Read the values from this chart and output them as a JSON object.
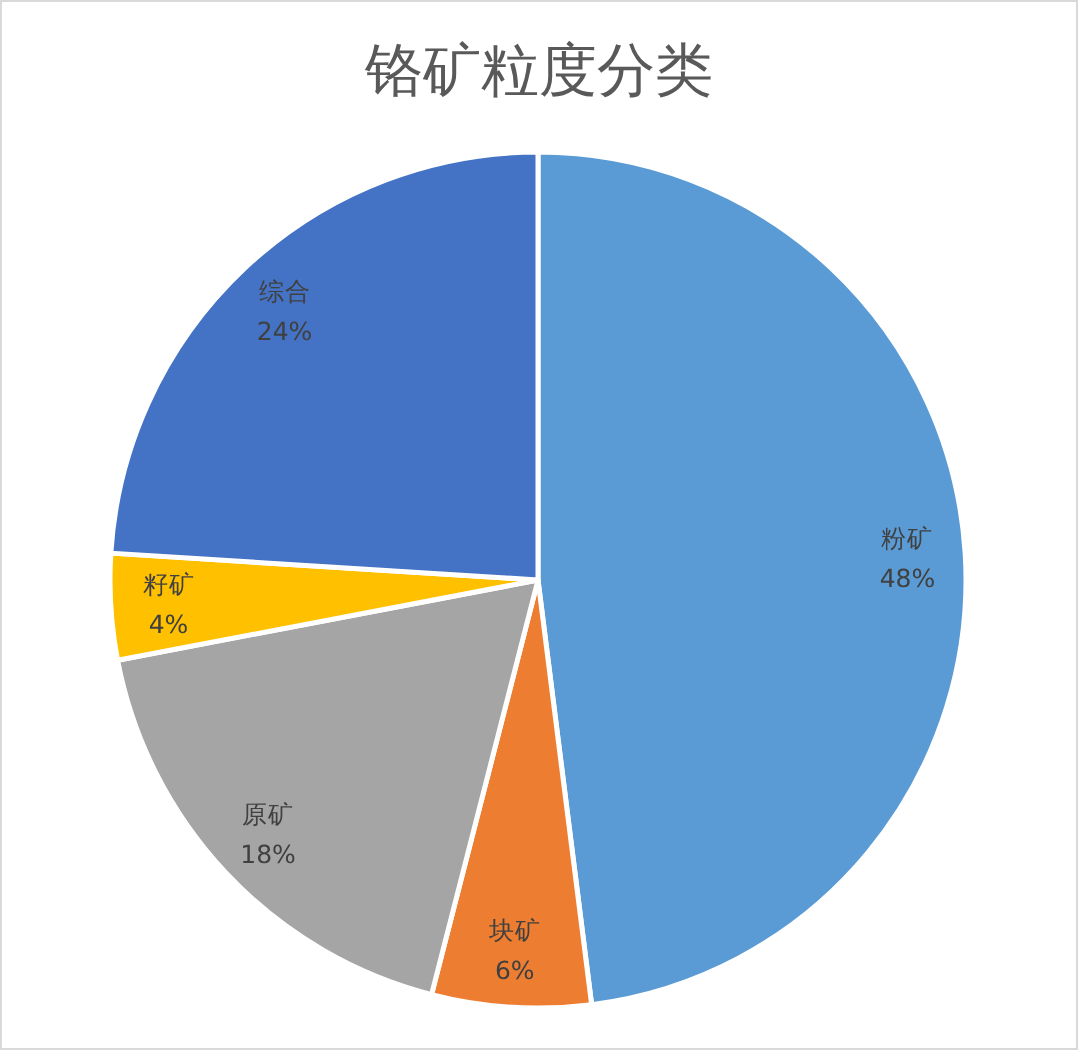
{
  "chart_data": {
    "type": "pie",
    "title": "铬矿粒度分类",
    "categories": [
      "粉矿",
      "块矿",
      "原矿",
      "籽矿",
      "综合"
    ],
    "values": [
      48,
      6,
      18,
      4,
      24
    ],
    "value_labels": [
      "48%",
      "6%",
      "18%",
      "4%",
      "24%"
    ],
    "colors": [
      "#5b9bd5",
      "#ed7d31",
      "#a5a5a5",
      "#ffc000",
      "#4472c4"
    ]
  }
}
